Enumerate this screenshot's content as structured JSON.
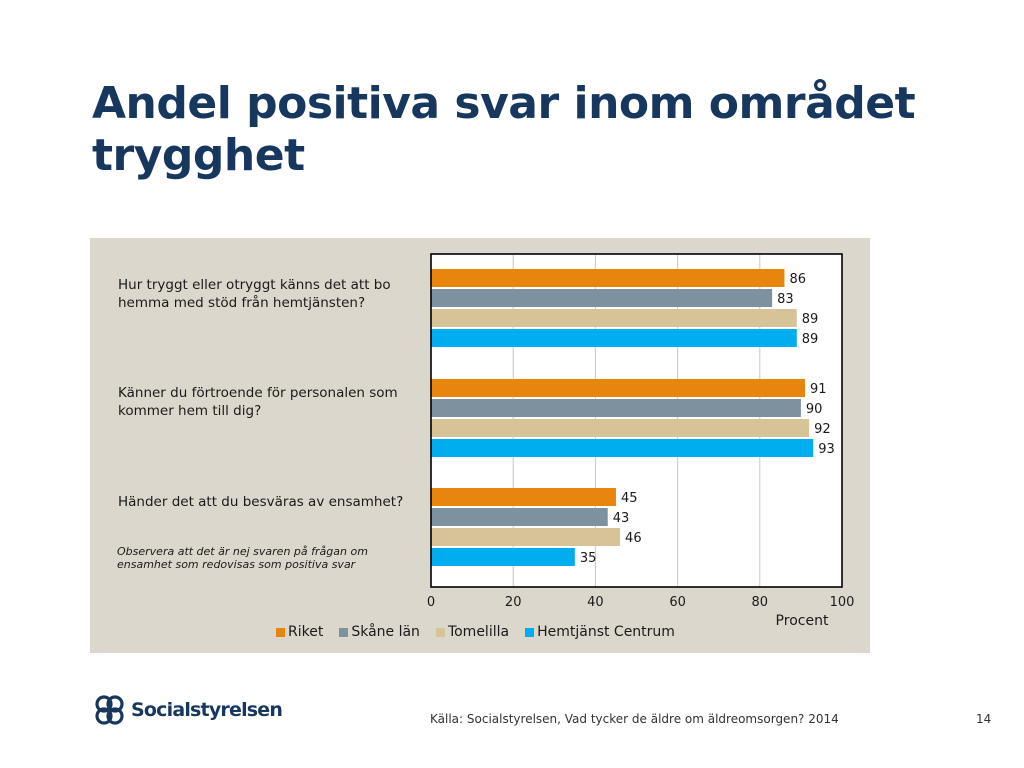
{
  "slide": {
    "title": "Andel positiva svar inom området trygghet",
    "note": "Observera att det är nej svaren på frågan om ensamhet som redovisas som positiva svar",
    "logo_text": "Socialstyrelsen",
    "source": "Källa: Socialstyrelsen, Vad tycker de äldre om äldreomsorgen? 2014",
    "page_number": "14"
  },
  "chart_data": {
    "type": "bar",
    "orientation": "horizontal",
    "categories": [
      "Hur tryggt eller otryggt känns det att bo hemma med stöd från hemtjänsten?",
      "Känner du förtroende för personalen som kommer hem till dig?",
      "Händer det att du besväras av ensamhet?"
    ],
    "series": [
      {
        "name": "Riket",
        "color": "#e8850c",
        "values": [
          86,
          91,
          45
        ]
      },
      {
        "name": "Skåne län",
        "color": "#7d929e",
        "values": [
          83,
          90,
          43
        ]
      },
      {
        "name": "Tomelilla",
        "color": "#d6c398",
        "values": [
          89,
          92,
          46
        ]
      },
      {
        "name": "Hemtjänst Centrum",
        "color": "#00adef",
        "values": [
          89,
          93,
          35
        ]
      }
    ],
    "xlabel": "Procent",
    "xlim": [
      0,
      100
    ],
    "xticks": [
      0,
      20,
      40,
      60,
      80,
      100
    ],
    "grid": true,
    "legend": "bottom"
  }
}
